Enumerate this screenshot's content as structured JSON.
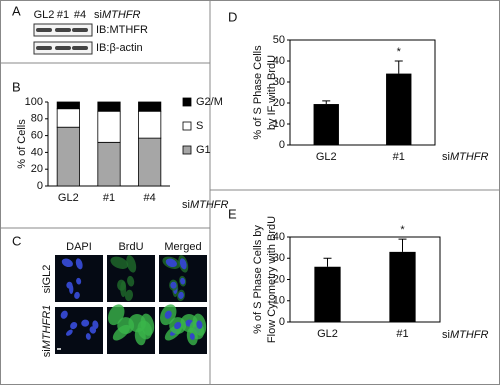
{
  "blot": {
    "panel": "A",
    "lanes": [
      "GL2",
      "#1",
      "#4"
    ],
    "lanes_label": [
      "si",
      "MTHFR"
    ],
    "bands": [
      "IB:MTHFR",
      "IB:β-actin"
    ]
  },
  "microscopy": {
    "panel": "C",
    "columns": [
      "DAPI",
      "BrdU",
      "Merged"
    ],
    "rows": [
      [
        "siGL2"
      ],
      [
        "si",
        "MTHFR1"
      ]
    ]
  },
  "chart_data": [
    {
      "panel": "B",
      "type": "stacked_bar",
      "categories": [
        "GL2",
        "#1",
        "#4"
      ],
      "series": [
        {
          "name": "G1",
          "color": "#a6a6a6",
          "values": [
            70,
            52,
            57
          ]
        },
        {
          "name": "S",
          "color": "#ffffff",
          "values": [
            22,
            37,
            32
          ]
        },
        {
          "name": "G2/M",
          "color": "#000000",
          "values": [
            8,
            11,
            11
          ]
        }
      ],
      "ylim": [
        0,
        100
      ],
      "yticks": [
        0,
        20,
        40,
        60,
        80,
        100
      ],
      "ylabel": [
        "% of Cells"
      ],
      "xlabel": [
        "si",
        "MTHFR"
      ]
    },
    {
      "panel": "D",
      "type": "bar_error",
      "categories": [
        "GL2",
        "#1"
      ],
      "values": [
        19.5,
        34
      ],
      "errors": [
        1.5,
        6
      ],
      "significance": [
        null,
        "*"
      ],
      "color": "#000000",
      "ylim": [
        0,
        50
      ],
      "yticks": [
        0,
        10,
        20,
        30,
        40,
        50
      ],
      "ylabel": [
        "% of S Phase Cells",
        "by IF with BrdU"
      ],
      "xlabel": [
        "si",
        "MTHFR"
      ]
    },
    {
      "panel": "E",
      "type": "bar_error",
      "categories": [
        "GL2",
        "#1"
      ],
      "values": [
        26,
        33
      ],
      "errors": [
        4,
        6
      ],
      "significance": [
        null,
        "*"
      ],
      "color": "#000000",
      "ylim": [
        0,
        40
      ],
      "yticks": [
        0,
        10,
        20,
        30,
        40
      ],
      "ylabel": [
        "% of S Phase Cells by",
        "Flow Cytometry with BrdU"
      ],
      "xlabel": [
        "si",
        "MTHFR"
      ]
    }
  ]
}
